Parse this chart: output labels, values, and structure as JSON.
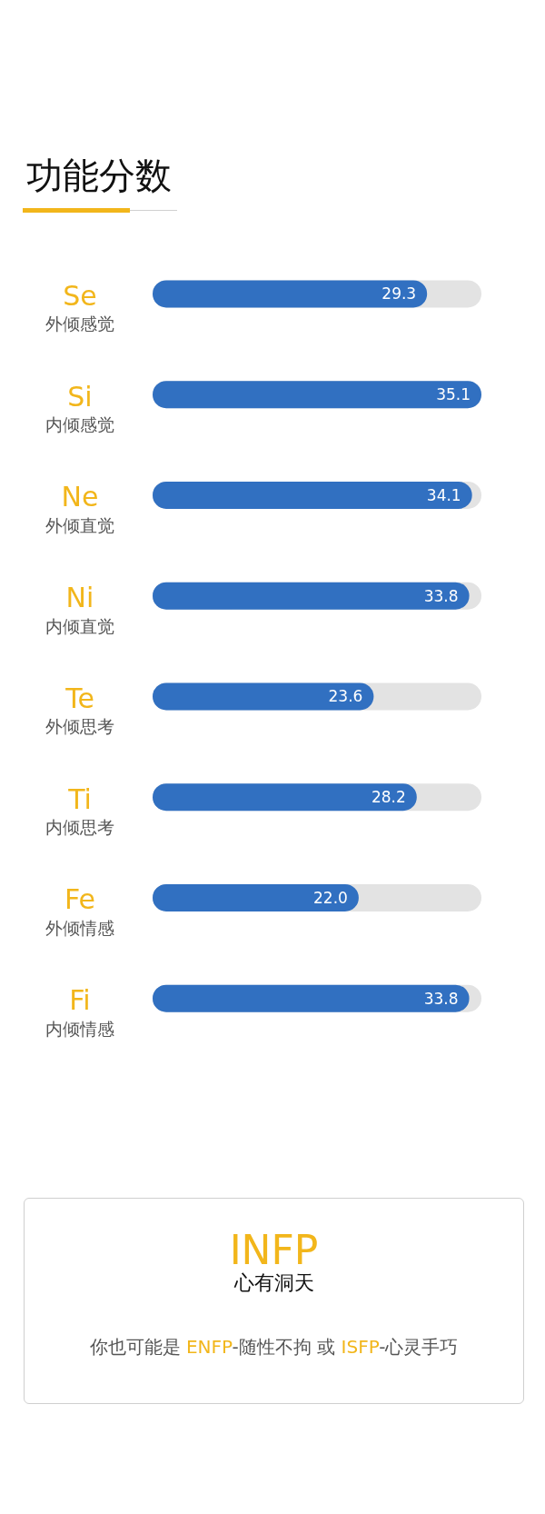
{
  "chart_data": [
    {
      "type": "bar",
      "orientation": "horizontal",
      "title": "功能分数",
      "categories": [
        "Se\n外倾感觉",
        "Si\n内倾感觉",
        "Ne\n外倾直觉",
        "Ni\n内倾直觉",
        "Te\n外倾思考",
        "Ti\n内倾思考",
        "Fe\n外倾情感",
        "Fi\n内倾情感"
      ],
      "values": [
        29.3,
        35.1,
        34.1,
        33.8,
        23.6,
        28.2,
        22.0,
        33.8
      ],
      "value_labels": [
        "29.3",
        "35.1",
        "34.1",
        "33.8",
        "23.6",
        "28.2",
        "22.0",
        "33.8"
      ],
      "color": "#3170c1",
      "tick_labels": "y"
    },
    {
      "type": "other",
      "title": "INFP",
      "subtitle": "心有洞天",
      "annotations": [
        "你也可能是 ENFP-随性不拘 或 ISFP-心灵手巧"
      ]
    }
  ]
}
